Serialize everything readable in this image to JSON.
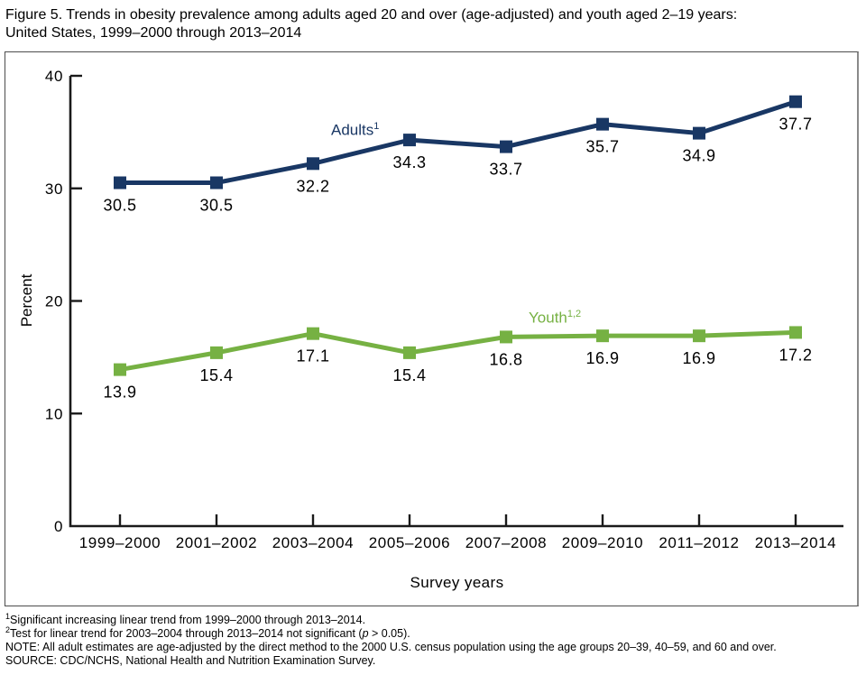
{
  "title": "Figure 5. Trends in obesity prevalence among adults aged 20 and over (age-adjusted) and youth aged 2–19 years:\nUnited States, 1999–2000 through 2013–2014",
  "chart_data": {
    "type": "line",
    "categories": [
      "1999–2000",
      "2001–2002",
      "2003–2004",
      "2005–2006",
      "2007–2008",
      "2009–2010",
      "2011–2012",
      "2013–2014"
    ],
    "series": [
      {
        "name": "Adults",
        "label_base": "Adults",
        "label_sup": "1",
        "color": "#193764",
        "values": [
          30.5,
          30.5,
          32.2,
          34.3,
          33.7,
          35.7,
          34.9,
          37.7
        ]
      },
      {
        "name": "Youth",
        "label_base": "Youth",
        "label_sup": "1,2",
        "color": "#76b143",
        "values": [
          13.9,
          15.4,
          17.1,
          15.4,
          16.8,
          16.9,
          16.9,
          17.2
        ]
      }
    ],
    "xlabel": "Survey years",
    "ylabel": "Percent",
    "ylim": [
      0,
      40
    ],
    "y_ticks": [
      0,
      10,
      20,
      30,
      40
    ],
    "grid": false,
    "legend_position": "inline-labels-near-lines",
    "marker": "square",
    "value_labels": "below each point, one decimal"
  },
  "footnotes": {
    "f1": {
      "sup": "1",
      "text": "Significant increasing linear trend from 1999–2000 through 2013–2014."
    },
    "f2": {
      "sup": "2",
      "pre": "Test for linear trend for 2003–2004 through 2013–2014 not significant (",
      "italic": "p",
      "post": " > 0.05)."
    },
    "note": "NOTE: All adult estimates are age-adjusted by the direct method to the 2000 U.S. census population using the age groups 20–39, 40–59, and 60 and over.",
    "source": "SOURCE: CDC/NCHS, National Health and Nutrition Examination Survey."
  },
  "style": {
    "axis_color": "#1a1a1a",
    "text_color": "#000000",
    "frame_border_color": "#4d4d4d"
  }
}
